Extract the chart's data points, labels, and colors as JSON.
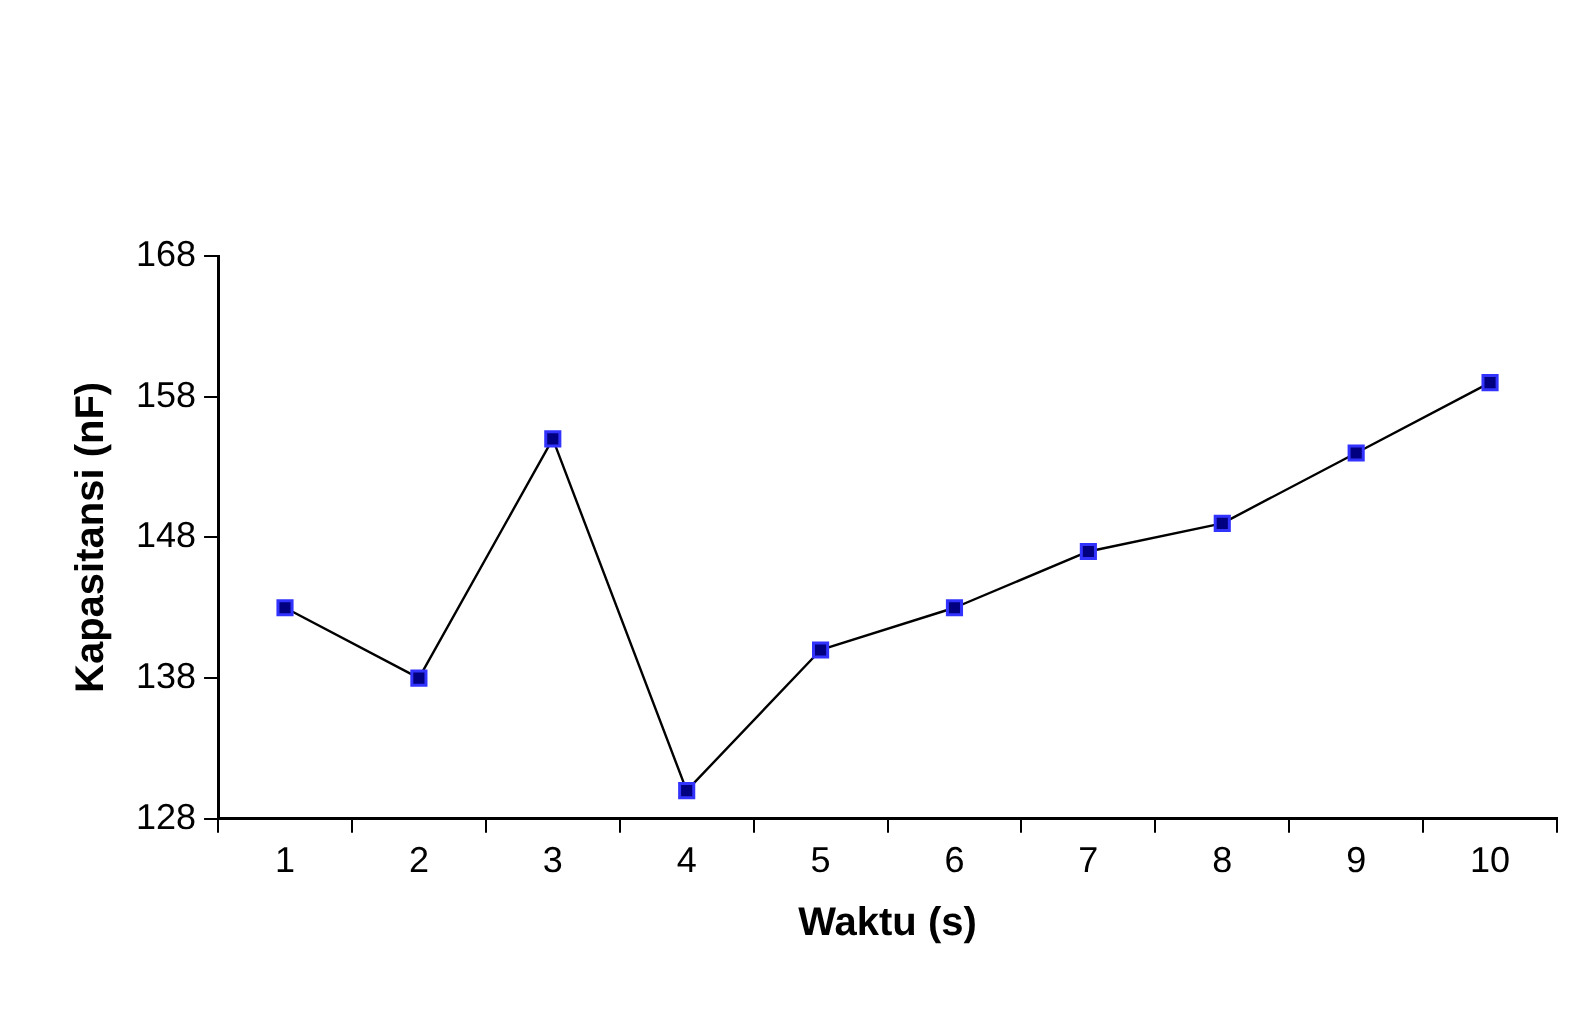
{
  "chart_data": {
    "type": "line",
    "xlabel": "Waktu (s)",
    "ylabel": "Kapasitansi (nF)",
    "categories": [
      "1",
      "2",
      "3",
      "4",
      "5",
      "6",
      "7",
      "8",
      "9",
      "10"
    ],
    "series": [
      {
        "color": "#000000",
        "values": [
          143,
          138,
          155,
          130,
          140,
          143,
          147,
          149,
          154,
          159
        ]
      }
    ],
    "ylim": [
      128,
      168
    ],
    "yticks": [
      128,
      138,
      148,
      158,
      168
    ],
    "grid": false,
    "legend": false,
    "marker": "square",
    "line_style": "solid"
  }
}
